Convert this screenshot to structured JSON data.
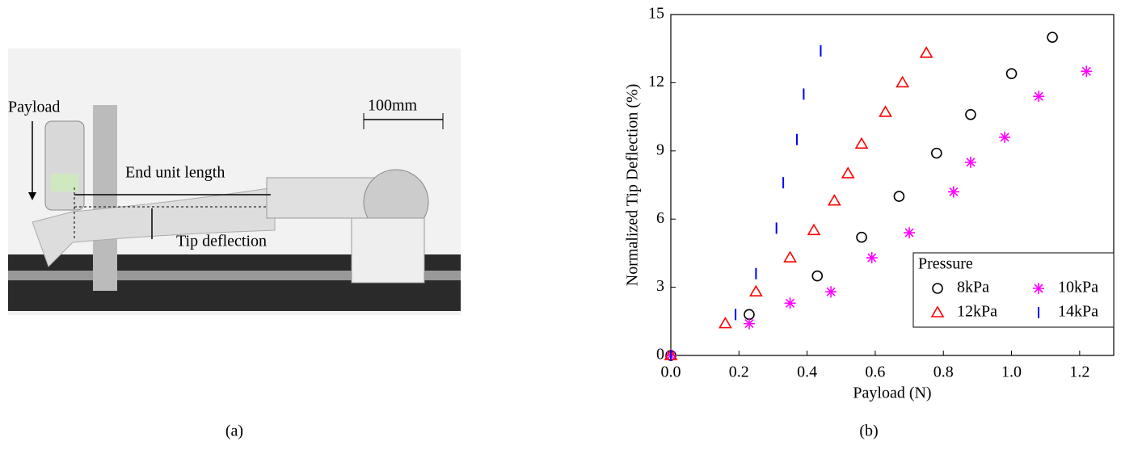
{
  "panel_a": {
    "payload_label": "Payload",
    "end_unit_label": "End unit length",
    "tip_label": "Tip deflection",
    "scale_label": "100mm",
    "caption": "(a)"
  },
  "chart_data": {
    "type": "scatter",
    "caption": "(b)",
    "x_label": "Payload (N)",
    "y_label": "Normalized Tip Deflection (%)",
    "xlim": [
      0,
      1.3
    ],
    "ylim": [
      0,
      15
    ],
    "xticks": [
      {
        "value": 0,
        "label": "0.0"
      },
      0.2,
      0.4,
      0.6,
      0.8,
      {
        "value": 1,
        "label": "1.0"
      },
      1.2
    ],
    "yticks": [
      0,
      3,
      6,
      9,
      12,
      15
    ],
    "legend_title": "Pressure",
    "legend_position": "lower right",
    "series": [
      {
        "name": "8kPa",
        "color": "#000000",
        "marker": "circle",
        "x": [
          0,
          0.23,
          0.43,
          0.56,
          0.67,
          0.78,
          0.88,
          1.0,
          1.12
        ],
        "values": [
          0,
          1.8,
          3.5,
          5.2,
          7.0,
          8.9,
          10.6,
          12.4,
          14.0
        ]
      },
      {
        "name": "10kPa",
        "color": "#ff00ff",
        "marker": "star",
        "x": [
          0,
          0.23,
          0.35,
          0.47,
          0.59,
          0.7,
          0.83,
          0.88,
          0.98,
          1.08,
          1.22
        ],
        "values": [
          0,
          1.4,
          2.3,
          2.8,
          4.3,
          5.4,
          7.2,
          8.5,
          9.6,
          11.4,
          12.5
        ]
      },
      {
        "name": "12kPa",
        "color": "#ff0000",
        "marker": "triangle",
        "x": [
          0,
          0.16,
          0.25,
          0.35,
          0.42,
          0.48,
          0.52,
          0.56,
          0.63,
          0.68,
          0.75
        ],
        "values": [
          0,
          1.4,
          2.8,
          4.3,
          5.5,
          6.8,
          8.0,
          9.3,
          10.7,
          12.0,
          13.3
        ]
      },
      {
        "name": "14kPa",
        "color": "#0000ff",
        "marker": "vbar",
        "x": [
          0,
          0.19,
          0.25,
          0.31,
          0.33,
          0.37,
          0.39,
          0.44
        ],
        "values": [
          0,
          1.8,
          3.6,
          5.6,
          7.6,
          9.5,
          11.5,
          13.4
        ]
      }
    ]
  }
}
